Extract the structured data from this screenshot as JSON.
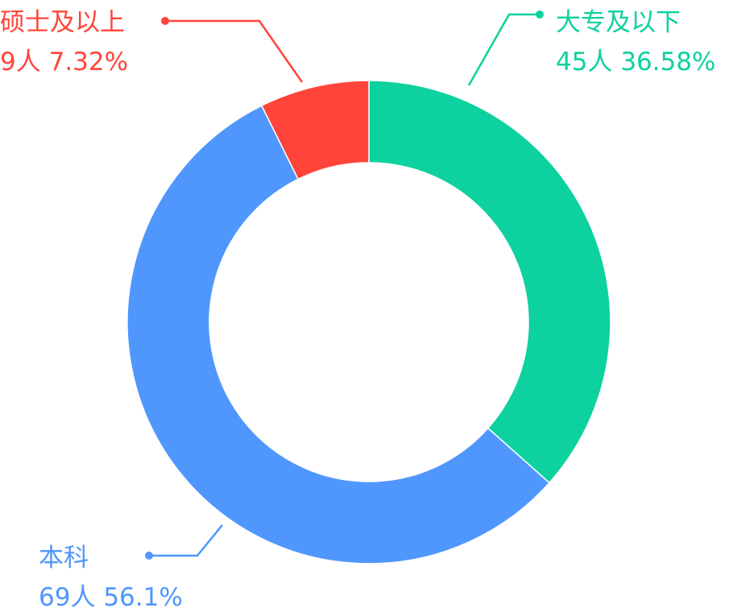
{
  "chart_data": {
    "type": "pie",
    "variant": "donut",
    "slices": [
      {
        "name": "大专及以下",
        "value_label": "45人",
        "percent_label": "36.58%",
        "value": 45,
        "percent": 36.58,
        "color": "#0DD19E"
      },
      {
        "name": "本科",
        "value_label": "69人",
        "percent_label": "56.1%",
        "value": 69,
        "percent": 56.1,
        "color": "#4F97FC"
      },
      {
        "name": "硕士及以上",
        "value_label": "9人",
        "percent_label": "7.32%",
        "value": 9,
        "percent": 7.32,
        "color": "#FF453A"
      }
    ]
  }
}
